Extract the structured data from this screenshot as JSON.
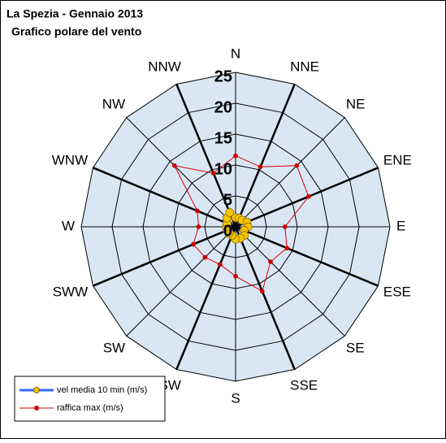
{
  "chart_data": {
    "type": "radar",
    "title": "La Spezia -  Gennaio 2013",
    "subtitle": "Grafico polare del vento",
    "categories": [
      "N",
      "NNE",
      "NE",
      "ENE",
      "E",
      "ESE",
      "SE",
      "SSE",
      "S",
      "SSW",
      "SW",
      "SWW",
      "W",
      "WNW",
      "NW",
      "NNW"
    ],
    "series": [
      {
        "name": "vel media 10 min (m/s)",
        "color": "#3366ff",
        "marker_color": "#f5c400",
        "values": [
          1.5,
          1.5,
          1.5,
          2,
          2,
          1.5,
          2,
          2,
          2,
          1.5,
          1.5,
          1.5,
          1.5,
          1.5,
          2,
          2.5
        ]
      },
      {
        "name": "raffica max (m/s)",
        "color": "#dd0000",
        "marker_color": "#cc0000",
        "values": [
          11.5,
          10.5,
          14,
          12.8,
          8,
          9,
          8,
          11.3,
          8,
          6.6,
          7,
          7.4,
          6,
          6.7,
          14,
          9.4
        ]
      }
    ],
    "rlim": [
      0,
      25
    ],
    "rticks": [
      0,
      5,
      10,
      15,
      20,
      25
    ],
    "legend": "bottom-left"
  }
}
